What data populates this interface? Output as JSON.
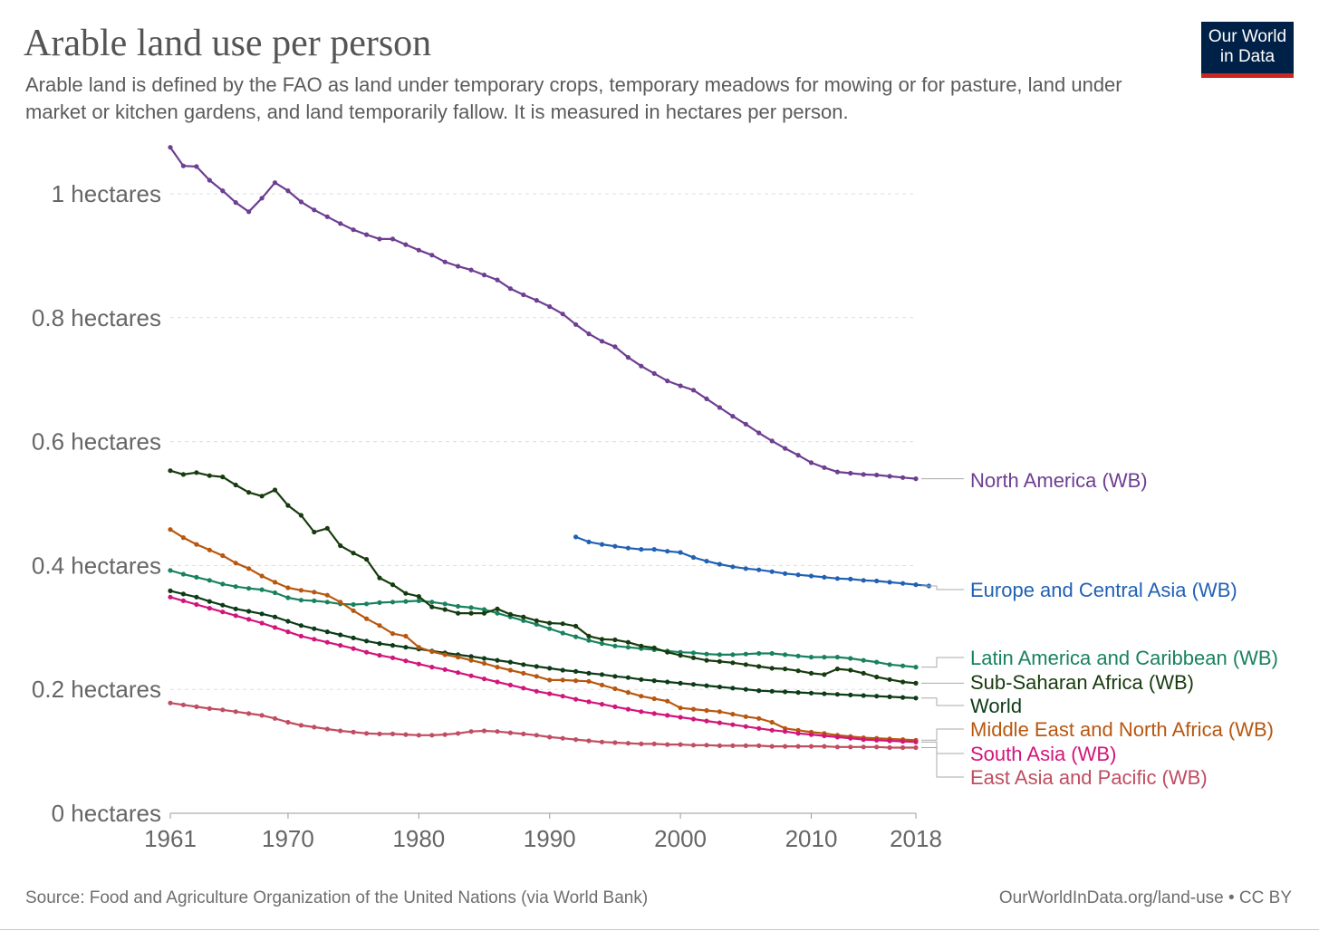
{
  "header": {
    "title": "Arable land use per person",
    "subtitle": "Arable land is defined by the FAO as land under temporary crops, temporary meadows for mowing or for pasture, land under market or kitchen gardens, and land temporarily fallow. It is measured in hectares per person."
  },
  "logo": {
    "line1": "Our World",
    "line2": "in Data"
  },
  "footer": {
    "source": "Source: Food and Agriculture Organization of the United Nations (via World Bank)",
    "credit": "OurWorldInData.org/land-use • CC BY"
  },
  "chart_data": {
    "type": "line",
    "title": "Arable land use per person",
    "xlabel": "",
    "ylabel": "",
    "xlim": [
      1961,
      2018
    ],
    "ylim": [
      0,
      1
    ],
    "x_ticks": [
      {
        "value": 1961,
        "label": "1961"
      },
      {
        "value": 1970,
        "label": "1970"
      },
      {
        "value": 1980,
        "label": "1980"
      },
      {
        "value": 1990,
        "label": "1990"
      },
      {
        "value": 2000,
        "label": "2000"
      },
      {
        "value": 2010,
        "label": "2010"
      },
      {
        "value": 2018,
        "label": "2018"
      }
    ],
    "y_ticks": [
      {
        "value": 0,
        "label": "0 hectares"
      },
      {
        "value": 0.2,
        "label": "0.2 hectares"
      },
      {
        "value": 0.4,
        "label": "0.4 hectares"
      },
      {
        "value": 0.6,
        "label": "0.6 hectares"
      },
      {
        "value": 0.8,
        "label": "0.8 hectares"
      },
      {
        "value": 1,
        "label": "1 hectares"
      }
    ],
    "grid": "horizontal dashed",
    "legend": "right, labels at line ends",
    "series": [
      {
        "name": "North America (WB)",
        "color": "#6d3e91",
        "start": 1961,
        "values": [
          1.075,
          1.045,
          1.044,
          1.022,
          1.005,
          0.986,
          0.971,
          0.993,
          1.018,
          1.005,
          0.987,
          0.974,
          0.963,
          0.952,
          0.942,
          0.934,
          0.927,
          0.927,
          0.918,
          0.909,
          0.901,
          0.89,
          0.883,
          0.877,
          0.869,
          0.861,
          0.847,
          0.837,
          0.828,
          0.818,
          0.806,
          0.789,
          0.774,
          0.762,
          0.753,
          0.736,
          0.722,
          0.71,
          0.698,
          0.69,
          0.683,
          0.669,
          0.655,
          0.641,
          0.628,
          0.614,
          0.601,
          0.589,
          0.578,
          0.566,
          0.558,
          0.551,
          0.549,
          0.547,
          0.546,
          0.544,
          0.542,
          0.54
        ]
      },
      {
        "name": "Europe and Central Asia (WB)",
        "color": "#2161b3",
        "start": 1992,
        "values": [
          0.446,
          0.438,
          0.434,
          0.431,
          0.428,
          0.426,
          0.426,
          0.423,
          0.421,
          0.413,
          0.407,
          0.402,
          0.398,
          0.395,
          0.393,
          0.39,
          0.387,
          0.385,
          0.383,
          0.381,
          0.379,
          0.378,
          0.376,
          0.375,
          0.373,
          0.371,
          0.369,
          0.367
        ]
      },
      {
        "name": "Latin America and Caribbean (WB)",
        "color": "#18825e",
        "start": 1961,
        "values": [
          0.392,
          0.386,
          0.381,
          0.376,
          0.37,
          0.366,
          0.363,
          0.361,
          0.356,
          0.348,
          0.344,
          0.343,
          0.341,
          0.338,
          0.337,
          0.338,
          0.34,
          0.341,
          0.342,
          0.343,
          0.341,
          0.338,
          0.334,
          0.332,
          0.329,
          0.323,
          0.317,
          0.311,
          0.305,
          0.298,
          0.291,
          0.285,
          0.279,
          0.274,
          0.27,
          0.268,
          0.266,
          0.264,
          0.262,
          0.26,
          0.259,
          0.257,
          0.256,
          0.256,
          0.257,
          0.258,
          0.258,
          0.256,
          0.254,
          0.252,
          0.252,
          0.252,
          0.25,
          0.247,
          0.244,
          0.24,
          0.238,
          0.236
        ]
      },
      {
        "name": "Sub-Saharan Africa (WB)",
        "color": "#173b0e",
        "start": 1961,
        "values": [
          0.553,
          0.547,
          0.55,
          0.545,
          0.543,
          0.53,
          0.518,
          0.512,
          0.522,
          0.497,
          0.481,
          0.454,
          0.46,
          0.432,
          0.42,
          0.41,
          0.38,
          0.369,
          0.355,
          0.35,
          0.333,
          0.329,
          0.323,
          0.323,
          0.323,
          0.33,
          0.321,
          0.317,
          0.311,
          0.307,
          0.306,
          0.302,
          0.286,
          0.281,
          0.28,
          0.276,
          0.27,
          0.267,
          0.26,
          0.255,
          0.251,
          0.247,
          0.245,
          0.243,
          0.24,
          0.237,
          0.234,
          0.233,
          0.23,
          0.226,
          0.224,
          0.233,
          0.231,
          0.226,
          0.22,
          0.216,
          0.212,
          0.21
        ]
      },
      {
        "name": "World",
        "color": "#0c3b17",
        "start": 1961,
        "values": [
          0.359,
          0.354,
          0.349,
          0.342,
          0.336,
          0.33,
          0.326,
          0.322,
          0.317,
          0.31,
          0.303,
          0.298,
          0.293,
          0.288,
          0.283,
          0.278,
          0.274,
          0.271,
          0.268,
          0.265,
          0.262,
          0.259,
          0.256,
          0.253,
          0.25,
          0.247,
          0.244,
          0.24,
          0.237,
          0.234,
          0.231,
          0.229,
          0.226,
          0.224,
          0.221,
          0.219,
          0.216,
          0.214,
          0.212,
          0.21,
          0.208,
          0.206,
          0.204,
          0.202,
          0.2,
          0.198,
          0.197,
          0.196,
          0.195,
          0.194,
          0.193,
          0.192,
          0.191,
          0.19,
          0.189,
          0.188,
          0.187,
          0.186
        ]
      },
      {
        "name": "Middle East and North Africa (WB)",
        "color": "#b8570f",
        "start": 1961,
        "values": [
          0.458,
          0.445,
          0.434,
          0.425,
          0.416,
          0.404,
          0.395,
          0.383,
          0.373,
          0.364,
          0.36,
          0.357,
          0.352,
          0.341,
          0.327,
          0.314,
          0.303,
          0.29,
          0.286,
          0.268,
          0.261,
          0.256,
          0.252,
          0.247,
          0.242,
          0.236,
          0.231,
          0.226,
          0.221,
          0.215,
          0.215,
          0.214,
          0.213,
          0.207,
          0.201,
          0.195,
          0.189,
          0.185,
          0.181,
          0.17,
          0.168,
          0.166,
          0.164,
          0.16,
          0.156,
          0.153,
          0.147,
          0.137,
          0.134,
          0.131,
          0.129,
          0.126,
          0.124,
          0.122,
          0.121,
          0.12,
          0.119,
          0.118
        ]
      },
      {
        "name": "South Asia (WB)",
        "color": "#d2157a",
        "start": 1961,
        "values": [
          0.349,
          0.343,
          0.337,
          0.331,
          0.325,
          0.319,
          0.313,
          0.307,
          0.3,
          0.293,
          0.286,
          0.281,
          0.276,
          0.271,
          0.266,
          0.26,
          0.255,
          0.251,
          0.246,
          0.241,
          0.236,
          0.232,
          0.227,
          0.222,
          0.217,
          0.212,
          0.207,
          0.202,
          0.197,
          0.193,
          0.189,
          0.184,
          0.18,
          0.176,
          0.172,
          0.168,
          0.164,
          0.161,
          0.158,
          0.155,
          0.152,
          0.149,
          0.146,
          0.143,
          0.14,
          0.137,
          0.134,
          0.132,
          0.129,
          0.127,
          0.125,
          0.123,
          0.121,
          0.119,
          0.118,
          0.117,
          0.116,
          0.115
        ]
      },
      {
        "name": "East Asia and Pacific (WB)",
        "color": "#c04d61",
        "start": 1961,
        "values": [
          0.178,
          0.175,
          0.172,
          0.169,
          0.167,
          0.164,
          0.161,
          0.158,
          0.153,
          0.147,
          0.142,
          0.139,
          0.136,
          0.133,
          0.131,
          0.129,
          0.128,
          0.128,
          0.127,
          0.126,
          0.126,
          0.127,
          0.129,
          0.132,
          0.133,
          0.132,
          0.13,
          0.128,
          0.126,
          0.123,
          0.121,
          0.119,
          0.117,
          0.115,
          0.114,
          0.113,
          0.112,
          0.112,
          0.111,
          0.111,
          0.11,
          0.11,
          0.109,
          0.109,
          0.109,
          0.109,
          0.108,
          0.108,
          0.108,
          0.108,
          0.108,
          0.107,
          0.107,
          0.107,
          0.107,
          0.106,
          0.106,
          0.106
        ]
      }
    ]
  }
}
